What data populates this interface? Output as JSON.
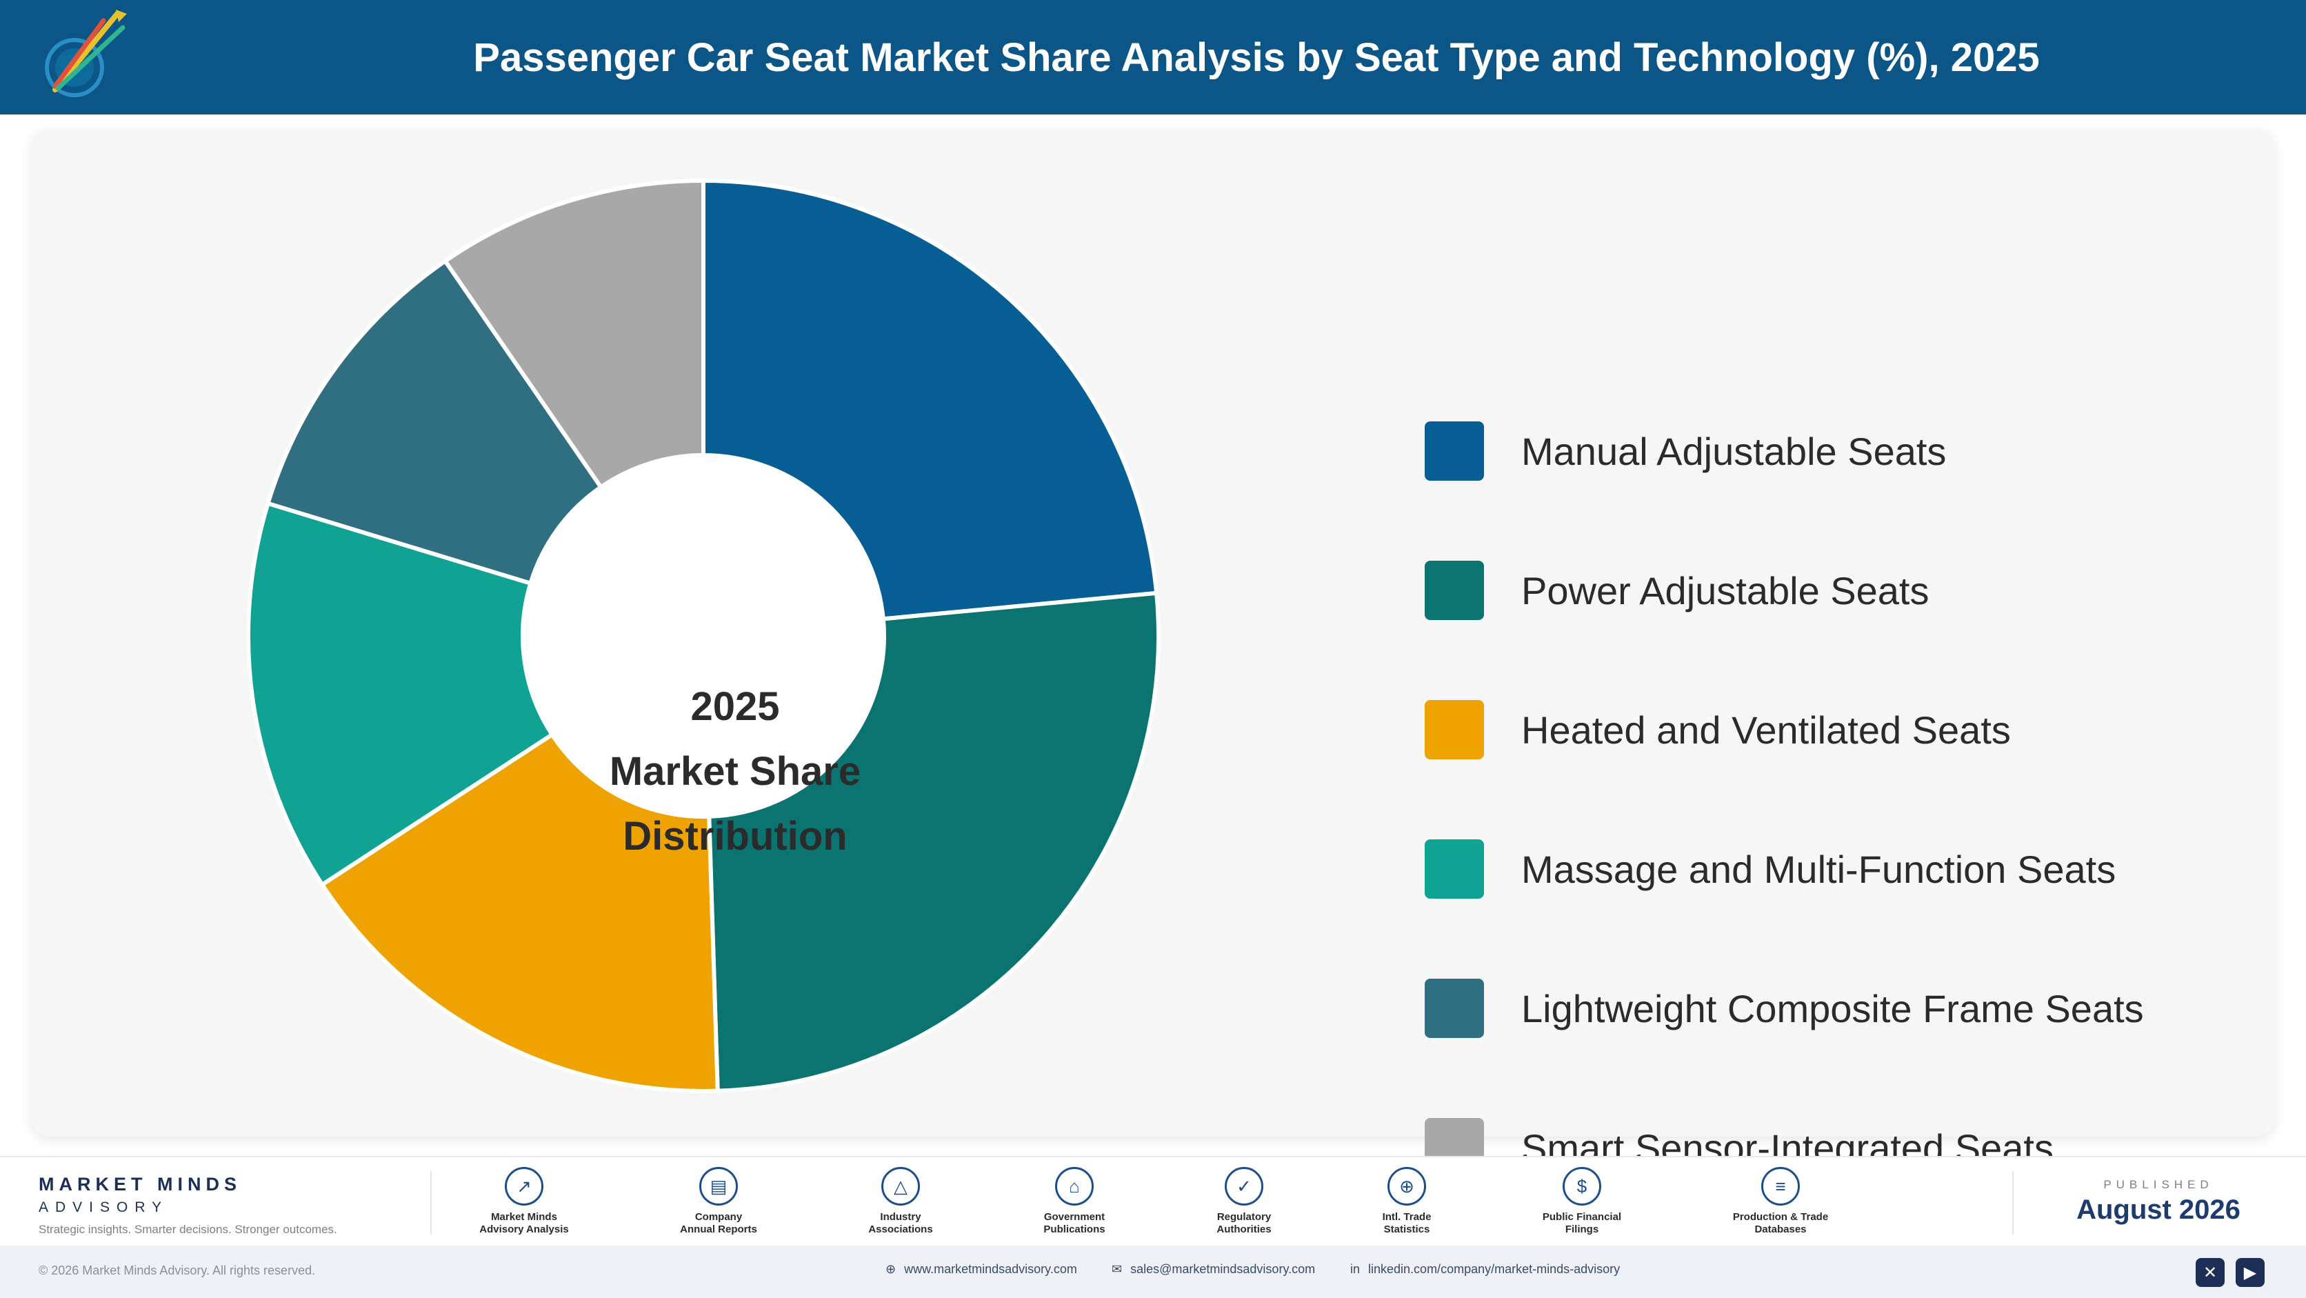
{
  "header": {
    "title": "Passenger Car Seat Market Share Analysis by Seat Type and Technology (%), 2025",
    "logo_icon": "market-minds-logo-icon"
  },
  "chart_data": {
    "type": "pie",
    "variant": "donut",
    "title": "Passenger Car Seat Market Share Analysis by Seat Type and Technology (%), 2025",
    "center_label": [
      "2025",
      "Market Share",
      "Distribution"
    ],
    "legend_position": "right",
    "categories": [
      "Manual Adjustable Seats",
      "Power Adjustable Seats",
      "Heated and Ventilated Seats",
      "Massage and Multi-Function Seats",
      "Lightweight Composite Frame Seats",
      "Smart Sensor-Integrated Seats"
    ],
    "values": [
      23.5,
      26.0,
      16.3,
      13.9,
      10.7,
      9.6
    ],
    "colors": [
      "#075e94",
      "#0c7470",
      "#efa302",
      "#10a394",
      "#306f82",
      "#a8a8a8"
    ]
  },
  "footer": {
    "brand_name": "MARKET MINDS",
    "brand_sub": "ADVISORY",
    "tagline": "Strategic insights. Smarter decisions. Stronger outcomes.",
    "sources": [
      {
        "icon": "trend-chart-icon",
        "glyph": "↗",
        "label": "Market Minds\nAdvisory Analysis"
      },
      {
        "icon": "document-icon",
        "glyph": "▤",
        "label": "Company\nAnnual Reports"
      },
      {
        "icon": "network-icon",
        "glyph": "△",
        "label": "Industry\nAssociations"
      },
      {
        "icon": "government-building-icon",
        "glyph": "⌂",
        "label": "Government\nPublications"
      },
      {
        "icon": "shield-icon",
        "glyph": "✓",
        "label": "Regulatory\nAuthorities"
      },
      {
        "icon": "globe-icon",
        "glyph": "⊕",
        "label": "Intl. Trade\nStatistics"
      },
      {
        "icon": "dollar-coin-icon",
        "glyph": "$",
        "label": "Public Financial\nFilings"
      },
      {
        "icon": "database-icon",
        "glyph": "≡",
        "label": "Production & Trade\nDatabases"
      }
    ],
    "published_label": "PUBLISHED",
    "published_date": "August 2026",
    "copyright": "© 2026 Market Minds Advisory. All rights reserved.",
    "website": "www.marketmindsadvisory.com",
    "email": "sales@marketmindsadvisory.com",
    "linkedin": "linkedin.com/company/market-minds-advisory",
    "social_x_icon": "x-social-icon",
    "social_video_icon": "video-social-icon"
  }
}
